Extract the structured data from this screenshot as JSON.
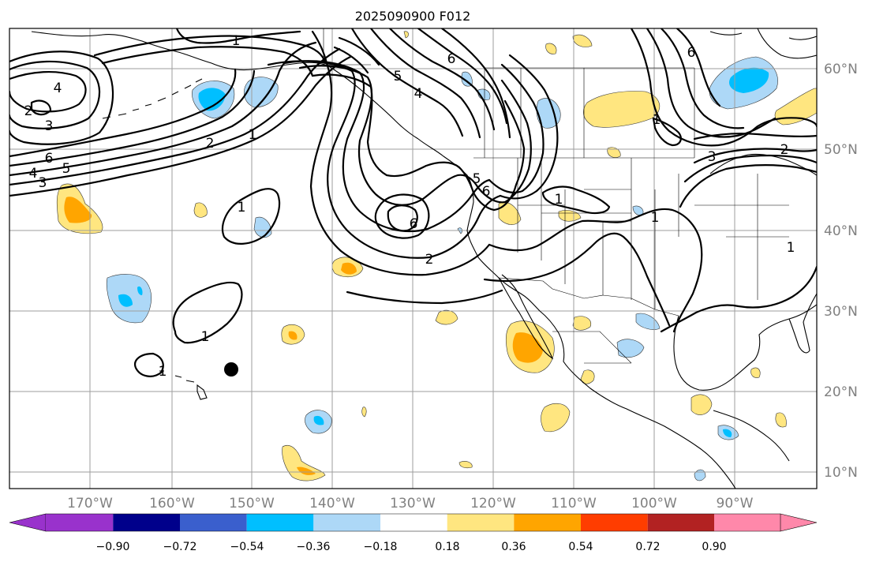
{
  "title": "2025090900 F012",
  "colors": {
    "ocean": "#ffffff",
    "grid": "#9e9e9e",
    "contour": "#000000",
    "neg_strong": "#00bfff",
    "neg_weak": "#add8f7",
    "pos_weak": "#ffe680",
    "pos_strong": "#ffa500"
  },
  "longitude_labels": [
    "170°W",
    "160°W",
    "150°W",
    "140°W",
    "130°W",
    "120°W",
    "110°W",
    "100°W",
    "90°W"
  ],
  "latitude_labels": [
    "60°N",
    "50°N",
    "40°N",
    "30°N",
    "20°N",
    "10°N"
  ],
  "colorbar": {
    "ticks": [
      "−0.90",
      "−0.72",
      "−0.54",
      "−0.36",
      "−0.18",
      "0.18",
      "0.36",
      "0.54",
      "0.72",
      "0.90"
    ],
    "colors": [
      "#9932cc",
      "#00008b",
      "#3a5fcd",
      "#00bfff",
      "#add8f7",
      "#ffffff",
      "#ffe680",
      "#ffa500",
      "#ff3d00",
      "#b22222",
      "#ff88aa"
    ]
  },
  "contour_labels": [
    {
      "text": "1",
      "name": "contour-label-1-gulf"
    },
    {
      "text": "2",
      "name": "contour-label-2-gulf"
    },
    {
      "text": "1",
      "name": "contour-label-1-gulf-south"
    },
    {
      "text": "4",
      "name": "contour-label-4-west"
    },
    {
      "text": "3",
      "name": "contour-label-3-west"
    },
    {
      "text": "2",
      "name": "contour-label-2-west"
    },
    {
      "text": "6",
      "name": "contour-label-6-west"
    },
    {
      "text": "5",
      "name": "contour-label-5-west"
    },
    {
      "text": "4",
      "name": "contour-label-4-west-b"
    },
    {
      "text": "3",
      "name": "contour-label-3-west-b"
    },
    {
      "text": "1",
      "name": "contour-label-1-central"
    },
    {
      "text": "1",
      "name": "contour-label-1-south"
    },
    {
      "text": "1",
      "name": "contour-label-1-hawaii"
    },
    {
      "text": "5",
      "name": "contour-label-5-bc"
    },
    {
      "text": "4",
      "name": "contour-label-4-bc"
    },
    {
      "text": "6",
      "name": "contour-label-6-north"
    },
    {
      "text": "6",
      "name": "contour-label-6-low"
    },
    {
      "text": "5",
      "name": "contour-label-5-oregon"
    },
    {
      "text": "6",
      "name": "contour-label-6-oregon"
    },
    {
      "text": "2",
      "name": "contour-label-2-calif"
    },
    {
      "text": "1",
      "name": "contour-label-1-nevada"
    },
    {
      "text": "1",
      "name": "contour-label-1-plains"
    },
    {
      "text": "6",
      "name": "contour-label-6-canada"
    },
    {
      "text": "1",
      "name": "contour-label-1-canada"
    },
    {
      "text": "3",
      "name": "contour-label-3-canada"
    },
    {
      "text": "2",
      "name": "contour-label-2-east"
    },
    {
      "text": "1",
      "name": "contour-label-1-east"
    }
  ]
}
